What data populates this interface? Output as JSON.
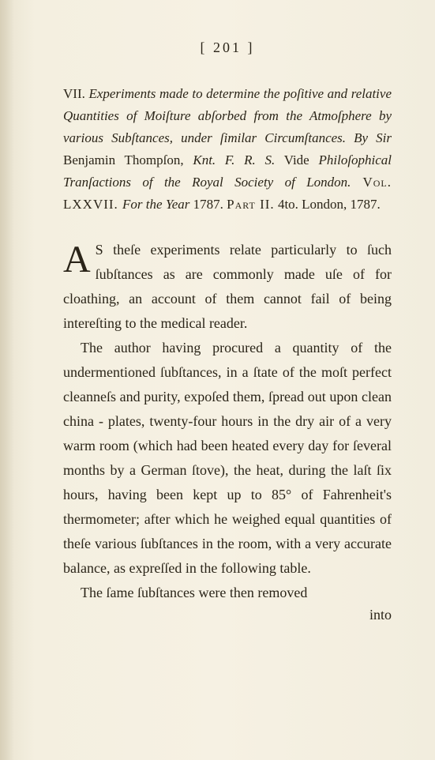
{
  "page_number_display": "[   201   ]",
  "heading": {
    "item_number": "VII.",
    "title_italic_1": "Experiments made to determine the poſitive and relative Quantities of Moiſture abſorbed from the Atmoſphere by various Subſtances, under ſimilar Circumſtances.   By Sir",
    "author_roman": " Benjamin Thompſon, ",
    "author_post_italic": "Knt. F. R. S.",
    "vide": "   Vide ",
    "work_italic": "Philoſophical Tranſactions of the Royal Society of London.",
    "vol_sc": " Vol. LXXVII. ",
    "for_year_italic": "For the Year ",
    "year": "1787. ",
    "part_sc": "Part II.",
    "imprint": " 4to. London, 1787."
  },
  "body": {
    "dropcap": "A",
    "first_run": "S theſe experiments relate particularly to ſuch ſubſtances as are commonly made uſe of for cloathing, an account of them cannot fail of being intereſting to the medical reader.",
    "p2": "The author having procured a quantity of the undermentioned ſubſtances, in a ſtate of the moſt perfect cleanneſs and purity, expoſed them, ſpread out upon clean china - plates, twenty-four hours in the dry air of a very warm room (which had been heated every day for ſeveral months by a German ſtove), the heat, during the laſt ſix hours, having been kept up to 85° of Fahrenheit's thermometer; after which he weighed equal quantities of theſe various ſubſtances in the room, with a very accurate balance, as expreſſed in the following table.",
    "p3": "The ſame ſubſtances were then removed"
  },
  "catchword": "into"
}
